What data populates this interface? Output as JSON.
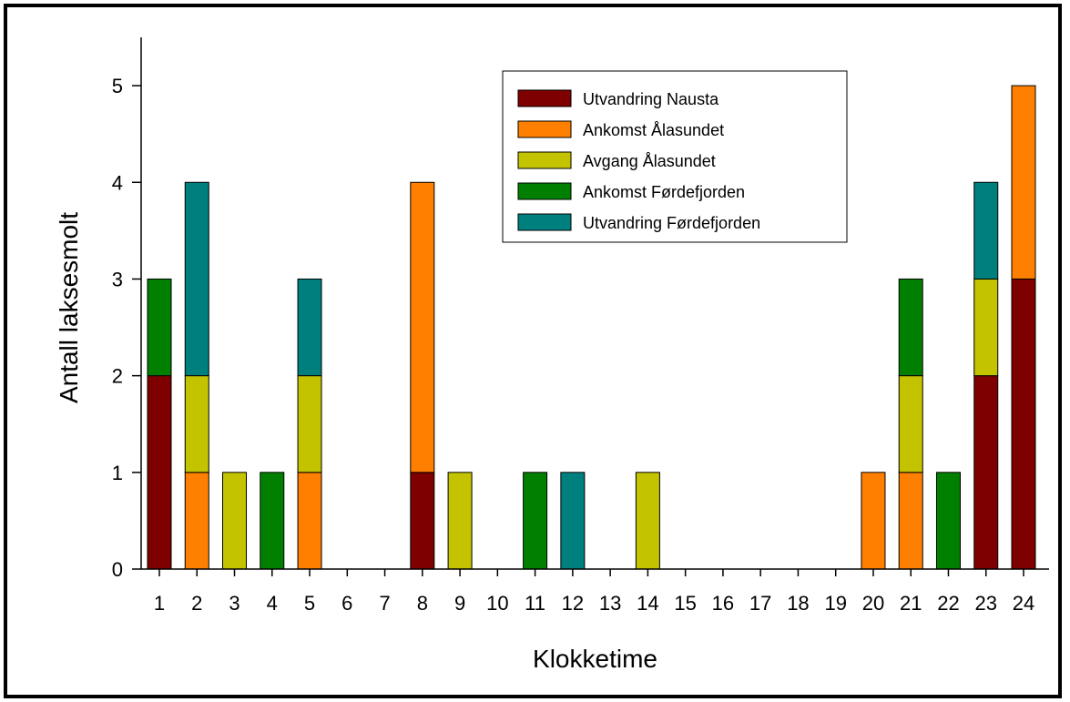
{
  "chart_data": {
    "type": "bar",
    "stacked": true,
    "xlabel": "Klokketime",
    "ylabel": "Antall laksesmolt",
    "ylim": [
      0,
      5.5
    ],
    "yticks": [
      0,
      1,
      2,
      3,
      4,
      5
    ],
    "categories": [
      "1",
      "2",
      "3",
      "4",
      "5",
      "6",
      "7",
      "8",
      "9",
      "10",
      "11",
      "12",
      "13",
      "14",
      "15",
      "16",
      "17",
      "18",
      "19",
      "20",
      "21",
      "22",
      "23",
      "24"
    ],
    "legend_position": "top-right",
    "grid": false,
    "series": [
      {
        "name": "Utvandring Nausta",
        "color": "#7f0000",
        "values": [
          2,
          0,
          0,
          0,
          0,
          0,
          0,
          1,
          0,
          0,
          0,
          0,
          0,
          0,
          0,
          0,
          0,
          0,
          0,
          0,
          0,
          0,
          2,
          3
        ]
      },
      {
        "name": "Ankomst Ålasundet",
        "color": "#ff7f00",
        "values": [
          0,
          1,
          0,
          0,
          1,
          0,
          0,
          3,
          0,
          0,
          0,
          0,
          0,
          0,
          0,
          0,
          0,
          0,
          0,
          1,
          1,
          0,
          0,
          2
        ]
      },
      {
        "name": "Avgang Ålasundet",
        "color": "#c3c300",
        "values": [
          0,
          1,
          1,
          0,
          1,
          0,
          0,
          0,
          1,
          0,
          0,
          0,
          0,
          1,
          0,
          0,
          0,
          0,
          0,
          0,
          1,
          0,
          1,
          0
        ]
      },
      {
        "name": "Ankomst Førdefjorden",
        "color": "#007f00",
        "values": [
          1,
          0,
          0,
          1,
          0,
          0,
          0,
          0,
          0,
          0,
          1,
          0,
          0,
          0,
          0,
          0,
          0,
          0,
          0,
          0,
          1,
          1,
          0,
          0
        ]
      },
      {
        "name": "Utvandring Førdefjorden",
        "color": "#007f7f",
        "values": [
          0,
          2,
          0,
          0,
          1,
          0,
          0,
          0,
          0,
          0,
          0,
          1,
          0,
          0,
          0,
          0,
          0,
          0,
          0,
          0,
          0,
          0,
          1,
          0
        ]
      }
    ]
  }
}
